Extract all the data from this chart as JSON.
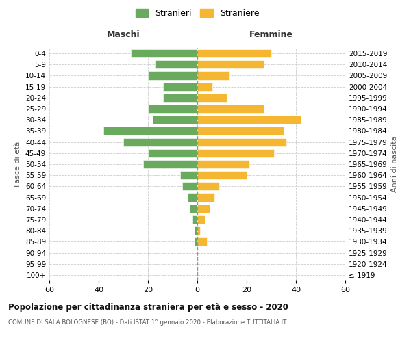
{
  "age_groups": [
    "100+",
    "95-99",
    "90-94",
    "85-89",
    "80-84",
    "75-79",
    "70-74",
    "65-69",
    "60-64",
    "55-59",
    "50-54",
    "45-49",
    "40-44",
    "35-39",
    "30-34",
    "25-29",
    "20-24",
    "15-19",
    "10-14",
    "5-9",
    "0-4"
  ],
  "birth_years": [
    "≤ 1919",
    "1920-1924",
    "1925-1929",
    "1930-1934",
    "1935-1939",
    "1940-1944",
    "1945-1949",
    "1950-1954",
    "1955-1959",
    "1960-1964",
    "1965-1969",
    "1970-1974",
    "1975-1979",
    "1980-1984",
    "1985-1989",
    "1990-1994",
    "1995-1999",
    "2000-2004",
    "2005-2009",
    "2010-2014",
    "2015-2019"
  ],
  "maschi": [
    0,
    0,
    0,
    1,
    1,
    2,
    3,
    4,
    6,
    7,
    22,
    20,
    30,
    38,
    18,
    20,
    14,
    14,
    20,
    17,
    27
  ],
  "femmine": [
    0,
    0,
    0,
    4,
    1,
    3,
    5,
    7,
    9,
    20,
    21,
    31,
    36,
    35,
    42,
    27,
    12,
    6,
    13,
    27,
    30
  ],
  "color_maschi": "#6aaa5e",
  "color_femmine": "#f5b731",
  "background_color": "#ffffff",
  "grid_color": "#cccccc",
  "center_line_color": "#999977",
  "title": "Popolazione per cittadinanza straniera per età e sesso - 2020",
  "subtitle": "COMUNE DI SALA BOLOGNESE (BO) - Dati ISTAT 1° gennaio 2020 - Elaborazione TUTTITALIA.IT",
  "ylabel_left": "Fasce di età",
  "ylabel_right": "Anni di nascita",
  "header_maschi": "Maschi",
  "header_femmine": "Femmine",
  "legend_maschi": "Stranieri",
  "legend_femmine": "Straniere",
  "xlim": 60,
  "xticks": [
    -60,
    -40,
    -20,
    0,
    20,
    40,
    60
  ],
  "xtick_labels": [
    "60",
    "40",
    "20",
    "0",
    "20",
    "40",
    "60"
  ]
}
